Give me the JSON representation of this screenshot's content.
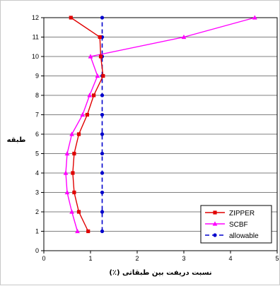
{
  "chart_data": {
    "type": "line",
    "title": "",
    "xlabel": "نسبت دریفت بین طبقاتی (٪)",
    "ylabel": "طبقه",
    "xlim": [
      0,
      5
    ],
    "ylim": [
      0,
      12
    ],
    "x_ticks": [
      "0",
      "1",
      "2",
      "3",
      "4",
      "5"
    ],
    "y_ticks": [
      "0",
      "1",
      "2",
      "3",
      "4",
      "5",
      "6",
      "7",
      "8",
      "9",
      "10",
      "11",
      "12"
    ],
    "grid": "horizontal",
    "legend_position": "bottom-right",
    "series": [
      {
        "name": "ZIPPER",
        "color": "#e00000",
        "marker": "square",
        "line": "solid",
        "points": [
          [
            0.95,
            1
          ],
          [
            0.75,
            2
          ],
          [
            0.65,
            3
          ],
          [
            0.62,
            4
          ],
          [
            0.65,
            5
          ],
          [
            0.75,
            6
          ],
          [
            0.93,
            7
          ],
          [
            1.07,
            8
          ],
          [
            1.27,
            9
          ],
          [
            1.22,
            10
          ],
          [
            1.2,
            11
          ],
          [
            0.58,
            12
          ]
        ]
      },
      {
        "name": "SCBF",
        "color": "#ff00ff",
        "marker": "triangle",
        "line": "solid",
        "points": [
          [
            0.72,
            1
          ],
          [
            0.6,
            2
          ],
          [
            0.5,
            3
          ],
          [
            0.47,
            4
          ],
          [
            0.5,
            5
          ],
          [
            0.6,
            6
          ],
          [
            0.83,
            7
          ],
          [
            0.98,
            8
          ],
          [
            1.15,
            9
          ],
          [
            1.0,
            10
          ],
          [
            3.0,
            11
          ],
          [
            4.52,
            12
          ]
        ]
      },
      {
        "name": "allowable",
        "color": "#0000cc",
        "marker": "circle",
        "line": "dashed",
        "points": [
          [
            1.25,
            1
          ],
          [
            1.25,
            2
          ],
          [
            1.25,
            3
          ],
          [
            1.25,
            4
          ],
          [
            1.25,
            5
          ],
          [
            1.25,
            6
          ],
          [
            1.25,
            7
          ],
          [
            1.25,
            8
          ],
          [
            1.25,
            9
          ],
          [
            1.25,
            10
          ],
          [
            1.25,
            11
          ],
          [
            1.25,
            12
          ]
        ]
      }
    ]
  }
}
